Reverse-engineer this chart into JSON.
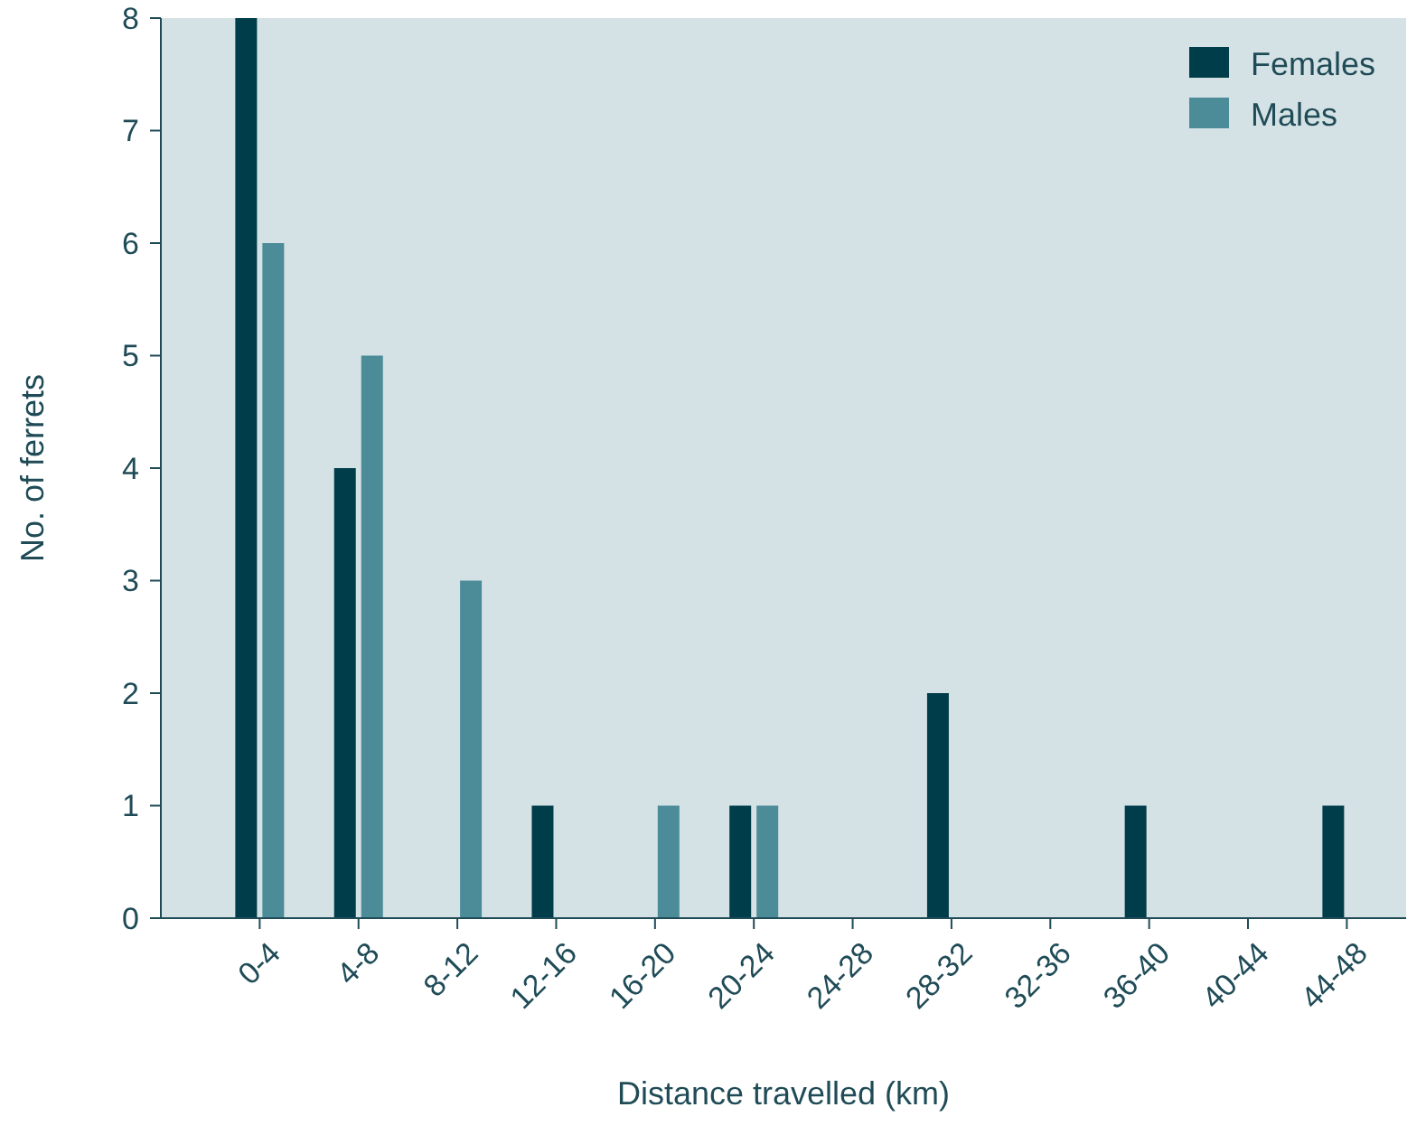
{
  "chart_data": {
    "type": "bar",
    "xlabel": "Distance travelled (km)",
    "ylabel": "No. of ferrets",
    "categories": [
      "0-4",
      "4-8",
      "8-12",
      "12-16",
      "16-20",
      "20-24",
      "24-28",
      "28-32",
      "32-36",
      "36-40",
      "40-44",
      "44-48"
    ],
    "series": [
      {
        "name": "Females",
        "color": "#003d4a",
        "values": [
          8,
          4,
          0,
          1,
          0,
          1,
          0,
          2,
          0,
          1,
          0,
          1
        ]
      },
      {
        "name": "Males",
        "color": "#4b8c98",
        "values": [
          6,
          5,
          3,
          0,
          1,
          1,
          0,
          0,
          0,
          0,
          0,
          0
        ]
      }
    ],
    "ylim": [
      0,
      8
    ],
    "yticks": [
      0,
      1,
      2,
      3,
      4,
      5,
      6,
      7,
      8
    ],
    "grid": false,
    "legend": "top right"
  }
}
